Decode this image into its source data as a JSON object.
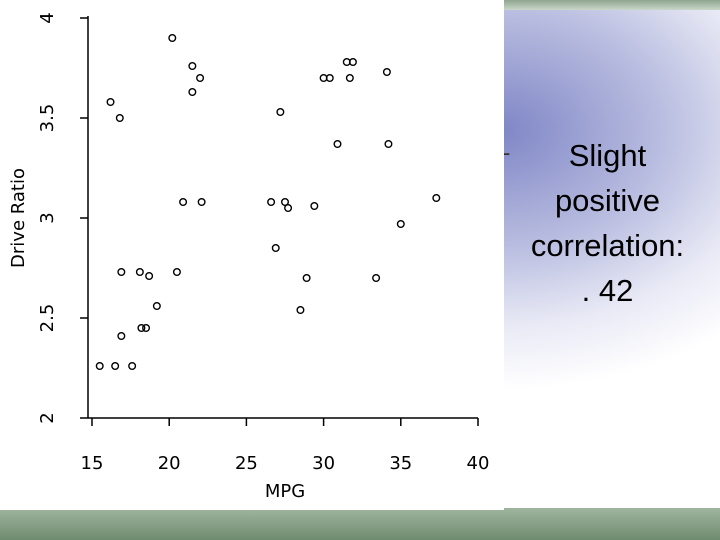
{
  "chart_data": {
    "type": "scatter",
    "xlabel": "MPG",
    "ylabel": "Drive Ratio",
    "xlim": [
      15,
      40
    ],
    "ylim": [
      2,
      4
    ],
    "xticks": [
      "15",
      "20",
      "25",
      "30",
      "35",
      "40"
    ],
    "yticks": [
      "2",
      "2.5",
      "3",
      "3.5",
      "4"
    ],
    "marker": "open-circle",
    "points": [
      [
        20.2,
        3.9
      ],
      [
        21.5,
        3.76
      ],
      [
        22.0,
        3.7
      ],
      [
        21.5,
        3.63
      ],
      [
        16.2,
        3.58
      ],
      [
        16.8,
        3.5
      ],
      [
        30.0,
        3.7
      ],
      [
        30.4,
        3.7
      ],
      [
        31.5,
        3.78
      ],
      [
        31.9,
        3.78
      ],
      [
        31.7,
        3.7
      ],
      [
        34.1,
        3.73
      ],
      [
        27.2,
        3.53
      ],
      [
        30.9,
        3.37
      ],
      [
        34.2,
        3.37
      ],
      [
        20.9,
        3.08
      ],
      [
        22.1,
        3.08
      ],
      [
        26.6,
        3.08
      ],
      [
        27.5,
        3.08
      ],
      [
        27.7,
        3.05
      ],
      [
        29.4,
        3.06
      ],
      [
        37.3,
        3.1
      ],
      [
        35.0,
        2.97
      ],
      [
        26.9,
        2.85
      ],
      [
        16.9,
        2.73
      ],
      [
        18.1,
        2.73
      ],
      [
        18.7,
        2.71
      ],
      [
        20.5,
        2.73
      ],
      [
        28.9,
        2.7
      ],
      [
        33.4,
        2.7
      ],
      [
        19.2,
        2.56
      ],
      [
        28.5,
        2.54
      ],
      [
        18.2,
        2.45
      ],
      [
        18.5,
        2.45
      ],
      [
        16.9,
        2.41
      ],
      [
        15.5,
        2.26
      ],
      [
        16.5,
        2.26
      ],
      [
        17.6,
        2.26
      ]
    ]
  },
  "bullet": {
    "dash": "-",
    "lines": [
      "Slight",
      "positive",
      "correlation:",
      ". 42"
    ]
  },
  "colors": {
    "point": "#000000",
    "axis": "#000000",
    "band": "#8aa38a"
  }
}
